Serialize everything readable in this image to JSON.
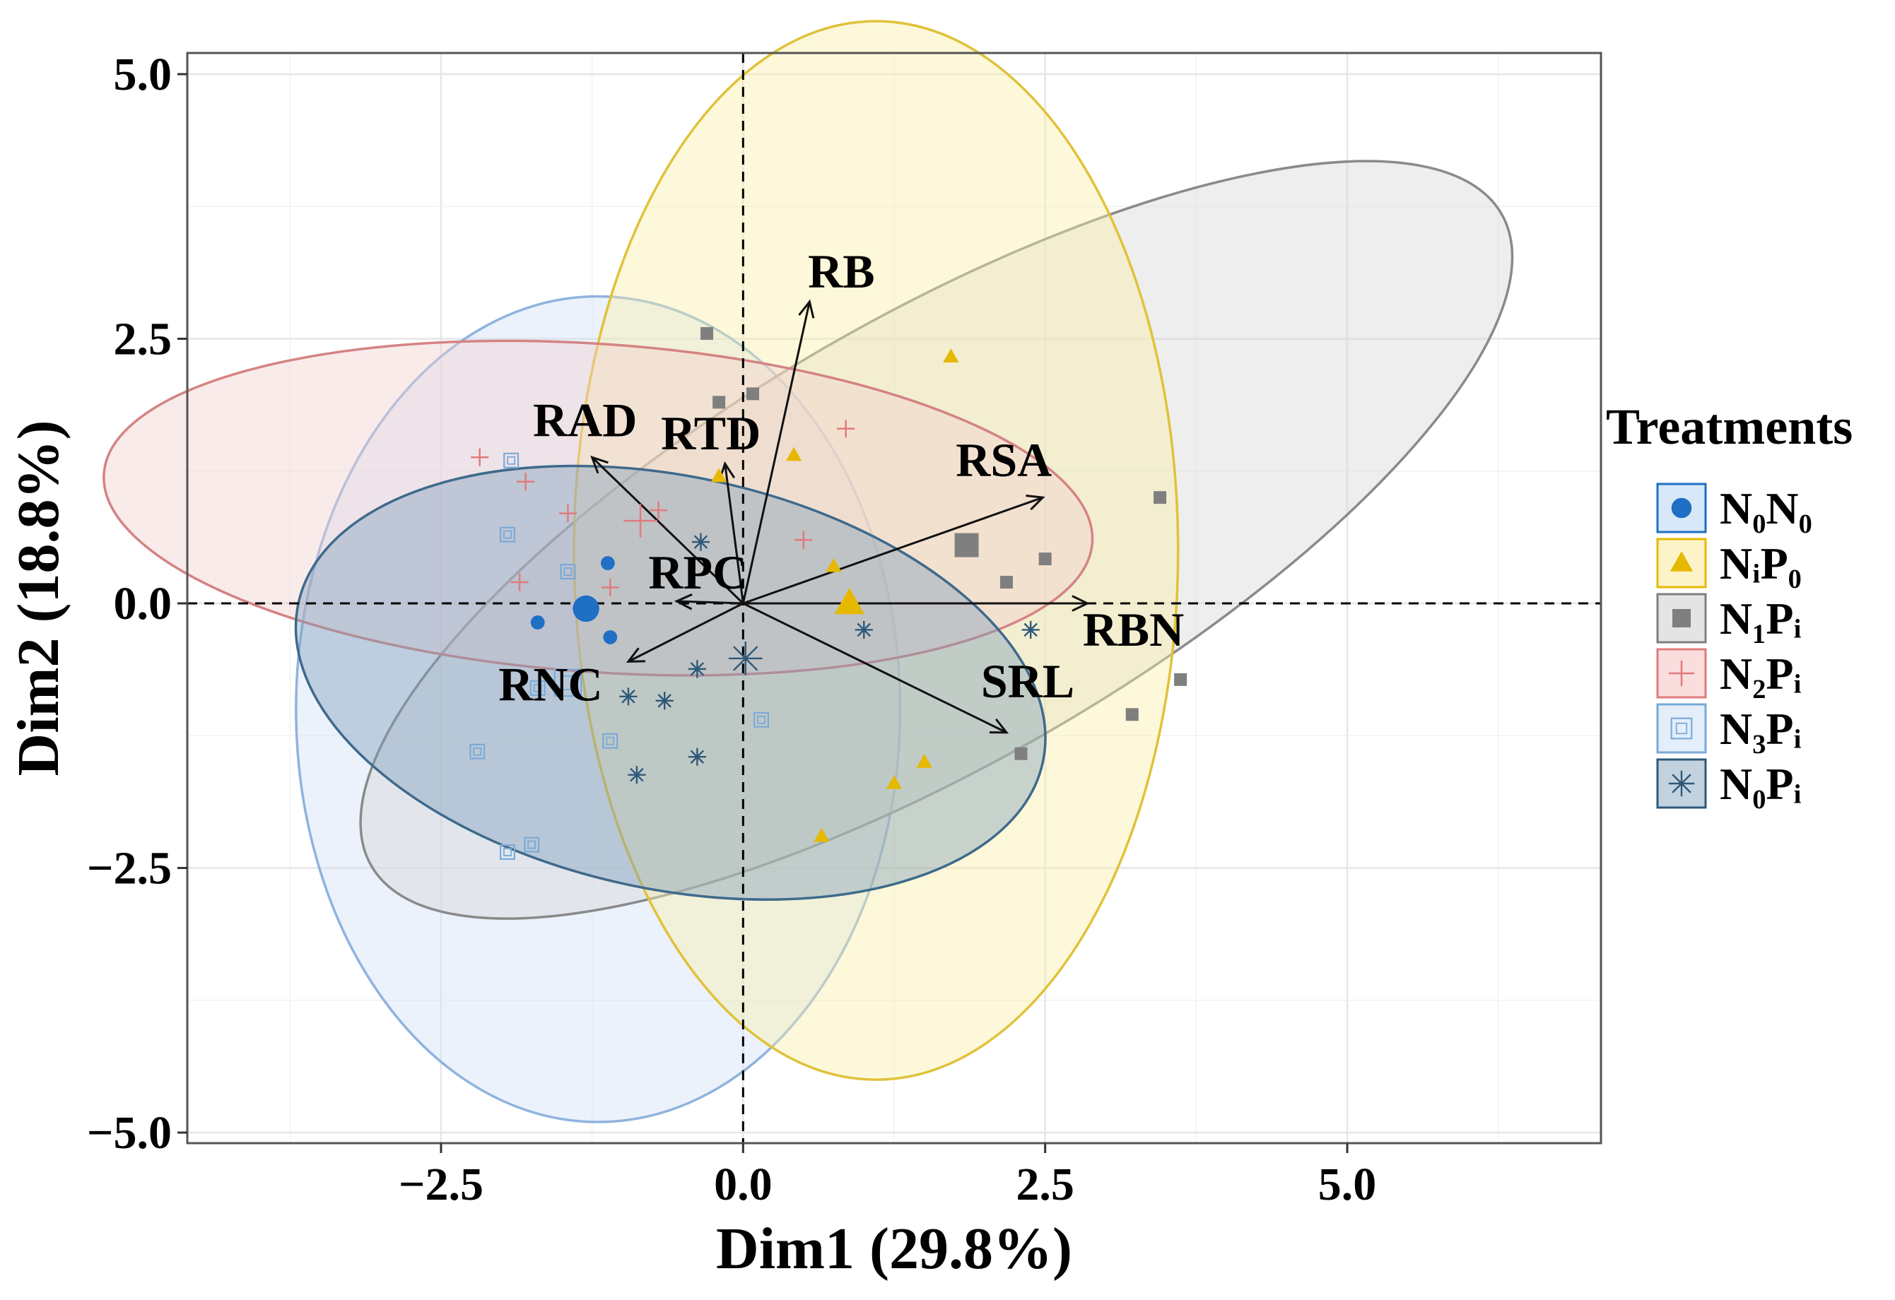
{
  "chart_data": {
    "type": "scatter",
    "subtype": "PCA biplot",
    "xlabel": "Dim1 (29.8%)",
    "ylabel": "Dim2 (18.8%)",
    "xlim": [
      -4.6,
      7.1
    ],
    "ylim": [
      -5.1,
      5.2
    ],
    "x_ticks": [
      -2.5,
      0.0,
      2.5,
      5.0
    ],
    "x_tick_labels": [
      "−2.5",
      "0.0",
      "2.5",
      "5.0"
    ],
    "y_ticks": [
      -5.0,
      -2.5,
      0.0,
      2.5,
      5.0
    ],
    "y_tick_labels": [
      "−5.0",
      "−2.5",
      "0.0",
      "2.5",
      "5.0"
    ],
    "reference_lines": {
      "x": 0,
      "y": 0,
      "style": "dashed"
    },
    "grid": true,
    "legend": {
      "title": "Treatments",
      "placement": "right",
      "entries": [
        {
          "label": "N₀N₀",
          "color": "#1f6fc5",
          "marker": "circle"
        },
        {
          "label": "NᵢP₀",
          "color": "#e6b800",
          "marker": "triangle"
        },
        {
          "label": "N₁Pᵢ",
          "color": "#7f7f7f",
          "marker": "square"
        },
        {
          "label": "N₂Pᵢ",
          "color": "#e07b7b",
          "marker": "plus"
        },
        {
          "label": "N₃Pᵢ",
          "color": "#7aaad8",
          "marker": "boxed-square"
        },
        {
          "label": "N₀Pᵢ",
          "color": "#2e5878",
          "marker": "asterisk"
        }
      ]
    },
    "ellipses": [
      {
        "group": "N₃Pᵢ",
        "cx": -1.2,
        "cy": -1.0,
        "rx": 2.5,
        "ry": 3.9,
        "angle_deg": 0,
        "fill": "#cfe0f5",
        "stroke": "#8fb3de"
      },
      {
        "group": "N₁Pᵢ",
        "cx": 1.6,
        "cy": 0.6,
        "rx": 5.4,
        "ry": 2.1,
        "angle_deg": -30,
        "fill": "#d6d6d6",
        "stroke": "#8a8a8a"
      },
      {
        "group": "NᵢP₀",
        "cx": 1.1,
        "cy": 0.5,
        "rx": 2.5,
        "ry": 5.0,
        "angle_deg": 0,
        "fill": "#fbeea8",
        "stroke": "#e0c23a"
      },
      {
        "group": "N₂Pᵢ",
        "cx": -1.2,
        "cy": 0.9,
        "rx": 4.1,
        "ry": 1.55,
        "angle_deg": 4,
        "fill": "#f2cfcf",
        "stroke": "#d48383"
      },
      {
        "group": "N₀Pᵢ",
        "cx": -0.6,
        "cy": -0.75,
        "rx": 3.15,
        "ry": 1.95,
        "angle_deg": 12,
        "fill": "#7f9eb9",
        "stroke": "#3e6a8c"
      }
    ],
    "variables": [
      {
        "name": "RB",
        "x": 0.55,
        "y": 2.85
      },
      {
        "name": "RAD",
        "x": -1.25,
        "y": 1.38
      },
      {
        "name": "RTD",
        "x": -0.15,
        "y": 1.32
      },
      {
        "name": "RSA",
        "x": 2.48,
        "y": 1.0
      },
      {
        "name": "RPC",
        "x": -0.55,
        "y": 0.02
      },
      {
        "name": "RNC",
        "x": -0.95,
        "y": -0.55
      },
      {
        "name": "RBN",
        "x": 2.85,
        "y": 0.0
      },
      {
        "name": "SRL",
        "x": 2.18,
        "y": -1.22
      }
    ],
    "series": [
      {
        "name": "N₀N₀",
        "marker": "circle",
        "color": "#1f6fc5",
        "centroid": [
          -1.3,
          -0.05
        ],
        "points": [
          [
            -1.12,
            0.38
          ],
          [
            -1.7,
            -0.18
          ],
          [
            -1.1,
            -0.32
          ]
        ]
      },
      {
        "name": "NᵢP₀",
        "marker": "triangle",
        "color": "#e6b800",
        "centroid": [
          0.88,
          0.0
        ],
        "points": [
          [
            1.72,
            2.33
          ],
          [
            0.42,
            1.4
          ],
          [
            0.75,
            0.35
          ],
          [
            1.5,
            -1.5
          ],
          [
            1.25,
            -1.7
          ],
          [
            0.65,
            -2.2
          ],
          [
            -0.2,
            1.2
          ]
        ]
      },
      {
        "name": "N₁Pᵢ",
        "marker": "square",
        "color": "#7f7f7f",
        "centroid": [
          1.85,
          0.55
        ],
        "points": [
          [
            -0.3,
            2.55
          ],
          [
            -0.2,
            1.9
          ],
          [
            0.08,
            1.98
          ],
          [
            3.45,
            1.0
          ],
          [
            2.5,
            0.42
          ],
          [
            2.18,
            0.2
          ],
          [
            3.62,
            -0.72
          ],
          [
            3.22,
            -1.05
          ],
          [
            2.3,
            -1.42
          ]
        ]
      },
      {
        "name": "N₂Pᵢ",
        "marker": "plus",
        "color": "#e07b7b",
        "centroid": [
          -0.85,
          0.78
        ],
        "points": [
          [
            -2.18,
            1.38
          ],
          [
            -1.8,
            1.15
          ],
          [
            -1.45,
            0.85
          ],
          [
            -0.7,
            0.88
          ],
          [
            0.5,
            0.6
          ],
          [
            0.85,
            1.65
          ],
          [
            -1.85,
            0.2
          ],
          [
            -1.1,
            0.15
          ]
        ]
      },
      {
        "name": "N₃Pᵢ",
        "marker": "boxed-square",
        "color": "#7aaad8",
        "centroid": [
          -1.45,
          -0.75
        ],
        "points": [
          [
            -1.92,
            1.35
          ],
          [
            -1.95,
            0.65
          ],
          [
            -1.45,
            0.3
          ],
          [
            -2.2,
            -1.4
          ],
          [
            -1.95,
            -2.35
          ],
          [
            -1.75,
            -2.28
          ],
          [
            -1.1,
            -1.3
          ],
          [
            0.15,
            -1.1
          ],
          [
            -1.7,
            -0.8
          ]
        ]
      },
      {
        "name": "N₀Pᵢ",
        "marker": "asterisk",
        "color": "#2e5878",
        "centroid": [
          0.02,
          -0.52
        ],
        "points": [
          [
            -0.35,
            0.58
          ],
          [
            1.0,
            -0.25
          ],
          [
            -0.95,
            -0.88
          ],
          [
            -0.65,
            -0.92
          ],
          [
            -0.38,
            -0.62
          ],
          [
            -0.38,
            -1.45
          ],
          [
            -0.88,
            -1.62
          ],
          [
            2.38,
            -0.25
          ]
        ]
      }
    ]
  }
}
